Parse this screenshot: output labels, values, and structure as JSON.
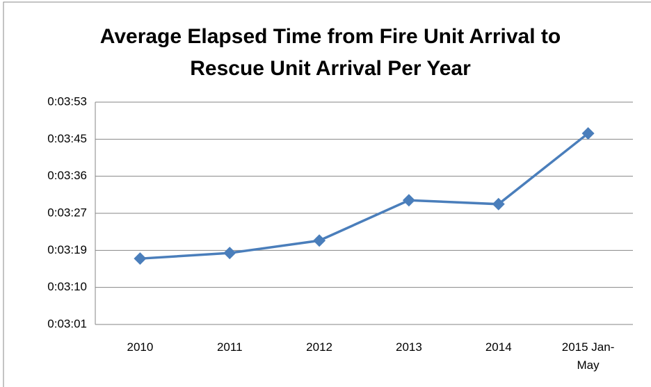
{
  "chart_data": {
    "type": "line",
    "title": "Average Elapsed Time from Fire Unit Arrival to Rescue Unit Arrival Per Year",
    "categories": [
      "2010",
      "2011",
      "2012",
      "2013",
      "2014",
      "2015 Jan-May"
    ],
    "series": [
      {
        "name": "Average Elapsed Time",
        "color": "#4a7ebb",
        "values": [
          196.8,
          198.1,
          201.0,
          210.4,
          209.5,
          226.0
        ]
      }
    ],
    "ylim": [
      181.44,
      233.28
    ],
    "yticks": [
      {
        "value": 181.44,
        "label": "0:03:01"
      },
      {
        "value": 190.08,
        "label": "0:03:10"
      },
      {
        "value": 198.72,
        "label": "0:03:19"
      },
      {
        "value": 207.36,
        "label": "0:03:27"
      },
      {
        "value": 216,
        "label": "0:03:36"
      },
      {
        "value": 224.64,
        "label": "0:03:45"
      },
      {
        "value": 233.28,
        "label": "0:03:53"
      }
    ],
    "grid": true,
    "legend": false
  }
}
